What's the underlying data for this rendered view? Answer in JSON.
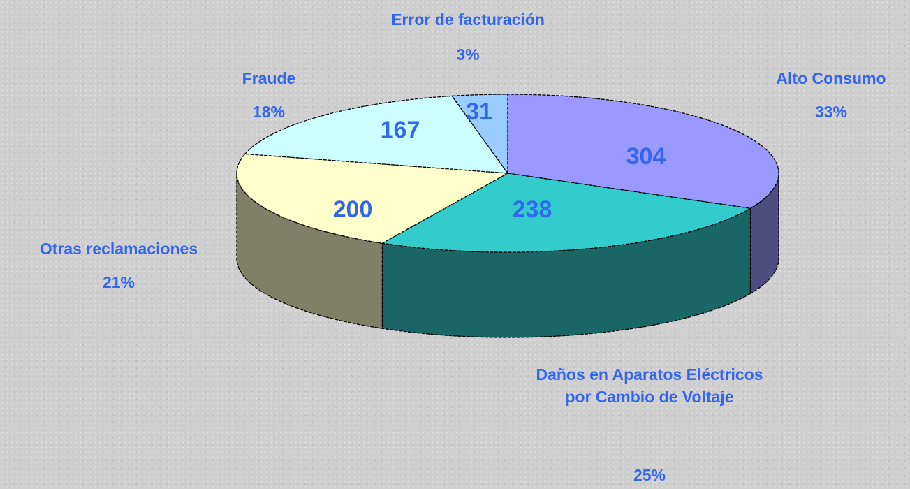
{
  "chart_data": {
    "type": "pie3d",
    "categories": [
      "Alto Consumo",
      "Daños en Aparatos Eléctricos por Cambio de Voltaje",
      "Otras reclamaciones",
      "Fraude",
      "Error de facturación"
    ],
    "values": [
      304,
      238,
      200,
      167,
      31
    ],
    "percent_labels": [
      "33%",
      "25%",
      "21%",
      "18%",
      "3%"
    ],
    "colors": [
      "#9999ff",
      "#33cccc",
      "#ffffcc",
      "#ccffff",
      "#99ccff"
    ],
    "side_colors": [
      "#4d4d80",
      "#1a6666",
      "#808066",
      "#668080",
      "#4d6680"
    ]
  }
}
